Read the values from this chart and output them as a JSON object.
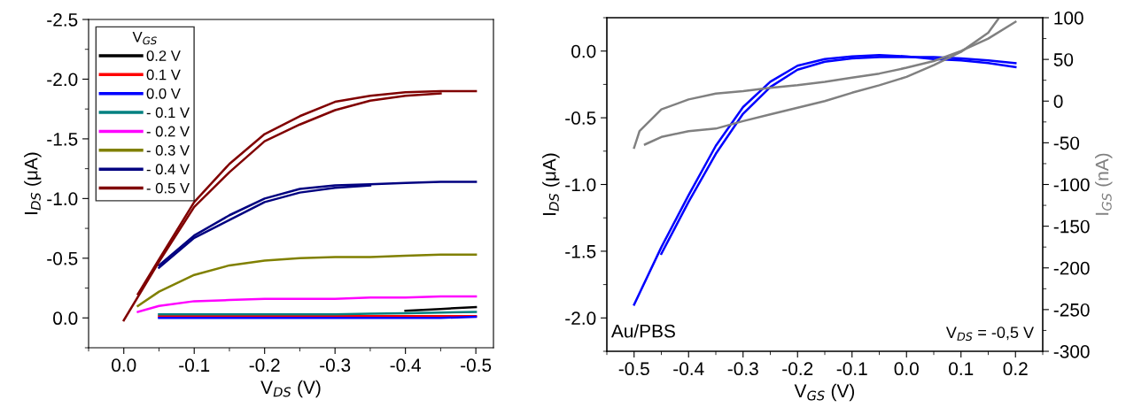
{
  "chart_data": [
    {
      "type": "line",
      "xlabel": "V$_{DS}$ (V)",
      "ylabel": "I$_{DS}$ (μA)",
      "legend_title": "V$_{GS}$",
      "legend": "top left",
      "grid": false,
      "marker": "none",
      "line_style": "solid",
      "xlim": [
        0.05,
        -0.525
      ],
      "xticks": [
        {
          "value": 0,
          "label": "0.0"
        },
        {
          "value": -0.1,
          "label": "-0.1"
        },
        {
          "value": -0.2,
          "label": "-0.2"
        },
        {
          "value": -0.3,
          "label": "-0.3"
        },
        {
          "value": -0.4,
          "label": "-0.4"
        },
        {
          "value": -0.5,
          "label": "-0.5"
        }
      ],
      "ylim": [
        0.25,
        -2.5
      ],
      "yticks": [
        {
          "value": 0,
          "label": "0.0"
        },
        {
          "value": -0.5,
          "label": "-0.5"
        },
        {
          "value": -1,
          "label": "-1.0"
        },
        {
          "value": -1.5,
          "label": "-1.5"
        },
        {
          "value": -2,
          "label": "-2.0"
        },
        {
          "value": -2.5,
          "label": "-2.5"
        }
      ],
      "x": [
        -0.05,
        -0.1,
        -0.15,
        -0.2,
        -0.25,
        -0.3,
        -0.35,
        -0.4,
        -0.45,
        -0.5
      ],
      "series": [
        {
          "name": "0.2 V",
          "color": "#000000",
          "x": [
            -0.4,
            -0.45,
            -0.5
          ],
          "values": [
            -0.06,
            -0.075,
            -0.09
          ]
        },
        {
          "name": "0.1 V",
          "color": "#ff0000",
          "values": [
            -0.015,
            -0.015,
            -0.015,
            -0.015,
            -0.015,
            -0.015,
            -0.015,
            -0.015,
            -0.015,
            -0.015
          ]
        },
        {
          "name": "0.0 V",
          "color": "#0000ff",
          "values": [
            0,
            0,
            0,
            0,
            0,
            0,
            0,
            0,
            0,
            -0.01
          ]
        },
        {
          "name": "- 0.1 V",
          "color": "#008080",
          "values": [
            -0.03,
            -0.03,
            -0.03,
            -0.03,
            -0.03,
            -0.03,
            -0.035,
            -0.04,
            -0.045,
            -0.05
          ]
        },
        {
          "name": "- 0.2 V",
          "color": "#ff00ff",
          "x": [
            -0.02,
            -0.05,
            -0.1,
            -0.15,
            -0.2,
            -0.25,
            -0.3,
            -0.35,
            -0.4,
            -0.45,
            -0.5
          ],
          "values": [
            -0.05,
            -0.1,
            -0.14,
            -0.15,
            -0.16,
            -0.16,
            -0.16,
            -0.17,
            -0.17,
            -0.18,
            -0.18
          ]
        },
        {
          "name": "- 0.3 V",
          "color": "#808000",
          "x": [
            -0.02,
            -0.05,
            -0.1,
            -0.15,
            -0.2,
            -0.25,
            -0.3,
            -0.35,
            -0.4,
            -0.45,
            -0.5
          ],
          "values": [
            -0.1,
            -0.22,
            -0.36,
            -0.44,
            -0.48,
            -0.5,
            -0.51,
            -0.51,
            -0.52,
            -0.53,
            -0.53
          ]
        },
        {
          "name": "- 0.4 V",
          "color": "#000080",
          "values": [
            -0.44,
            -0.69,
            -0.86,
            -1.0,
            -1.08,
            -1.11,
            -1.12,
            -1.13,
            -1.14,
            -1.14
          ]
        },
        {
          "color": "#000080",
          "x": [
            -0.05,
            -0.1,
            -0.15,
            -0.2,
            -0.25,
            -0.3,
            -0.35
          ],
          "values": [
            -0.42,
            -0.67,
            -0.82,
            -0.97,
            -1.05,
            -1.09,
            -1.11
          ]
        },
        {
          "name": "- 0.5 V",
          "color": "#800000",
          "x": [
            -0.02,
            -0.05,
            -0.1,
            -0.15,
            -0.2,
            -0.25,
            -0.3,
            -0.35,
            -0.4,
            -0.45,
            -0.5
          ],
          "values": [
            -0.2,
            -0.49,
            -0.97,
            -1.29,
            -1.54,
            -1.69,
            -1.81,
            -1.86,
            -1.89,
            -1.9,
            -1.9
          ]
        },
        {
          "color": "#800000",
          "x": [
            0,
            -0.05,
            -0.1,
            -0.15,
            -0.2,
            -0.25,
            -0.3,
            -0.35,
            -0.4,
            -0.45
          ],
          "values": [
            0.02,
            -0.47,
            -0.93,
            -1.22,
            -1.48,
            -1.62,
            -1.74,
            -1.82,
            -1.86,
            -1.88
          ]
        }
      ]
    },
    {
      "type": "line",
      "xlabel": "V$_{GS}$ (V)",
      "ylabel": "I$_{DS}$ (μA)",
      "y2label": "I$_{GS}$ (nA)",
      "grid": false,
      "marker": "none",
      "line_style": "solid",
      "legend": false,
      "xlim": [
        -0.55,
        0.25
      ],
      "xticks": [
        -0.5,
        -0.4,
        -0.3,
        -0.2,
        -0.1,
        {
          "value": 0,
          "label": "0.0"
        },
        0.1,
        0.2
      ],
      "ylim": [
        -2.25,
        0.25
      ],
      "yticks": [
        {
          "value": -2,
          "label": "-2.0"
        },
        -1.5,
        {
          "value": -1,
          "label": "-1.0"
        },
        -0.5,
        {
          "value": 0,
          "label": "0.0"
        }
      ],
      "y2lim": [
        -300,
        100
      ],
      "y2ticks": [
        -300,
        -250,
        -200,
        -150,
        -100,
        -50,
        0,
        50,
        100
      ],
      "annotations": [
        "Au/PBS",
        "V$_{DS}$ = -0,5 V"
      ],
      "series": [
        {
          "color": "#0000ff",
          "x": [
            -0.5,
            -0.45,
            -0.4,
            -0.35,
            -0.3,
            -0.25,
            -0.2,
            -0.15,
            -0.1,
            -0.05,
            0,
            0.05,
            0.1,
            0.15,
            0.2
          ],
          "values": [
            -1.9,
            -1.47,
            -1.08,
            -0.71,
            -0.42,
            -0.23,
            -0.11,
            -0.06,
            -0.04,
            -0.03,
            -0.04,
            -0.06,
            -0.07,
            -0.09,
            -0.12
          ]
        },
        {
          "color": "#0000ff",
          "x": [
            -0.45,
            -0.4,
            -0.35,
            -0.3,
            -0.25,
            -0.2,
            -0.15,
            -0.1,
            -0.05,
            0.05,
            0.1,
            0.15,
            0.2
          ],
          "values": [
            -1.52,
            -1.13,
            -0.77,
            -0.47,
            -0.27,
            -0.14,
            -0.08,
            -0.055,
            -0.045,
            -0.045,
            -0.055,
            -0.07,
            -0.09
          ]
        },
        {
          "color": "#808080",
          "axis": "y2",
          "x": [
            -0.5,
            -0.49,
            -0.45,
            -0.4,
            -0.35,
            -0.3,
            -0.25,
            -0.2,
            -0.15,
            -0.1,
            -0.05,
            0,
            0.05,
            0.1,
            0.15,
            0.2
          ],
          "values": [
            -56,
            -36,
            -10,
            2,
            9,
            12,
            16,
            19,
            23,
            28,
            33,
            40,
            48,
            60,
            75,
            95
          ]
        },
        {
          "color": "#808080",
          "axis": "y2",
          "x": [
            -0.48,
            -0.45,
            -0.4,
            -0.35,
            -0.3,
            -0.25,
            -0.2,
            -0.15,
            -0.1,
            -0.05,
            0,
            0.05,
            0.1,
            0.15,
            0.17
          ],
          "values": [
            -52,
            -43,
            -36,
            -33,
            -24,
            -16,
            -8,
            0,
            10,
            19,
            29,
            43,
            59,
            82,
            100
          ]
        }
      ]
    }
  ]
}
